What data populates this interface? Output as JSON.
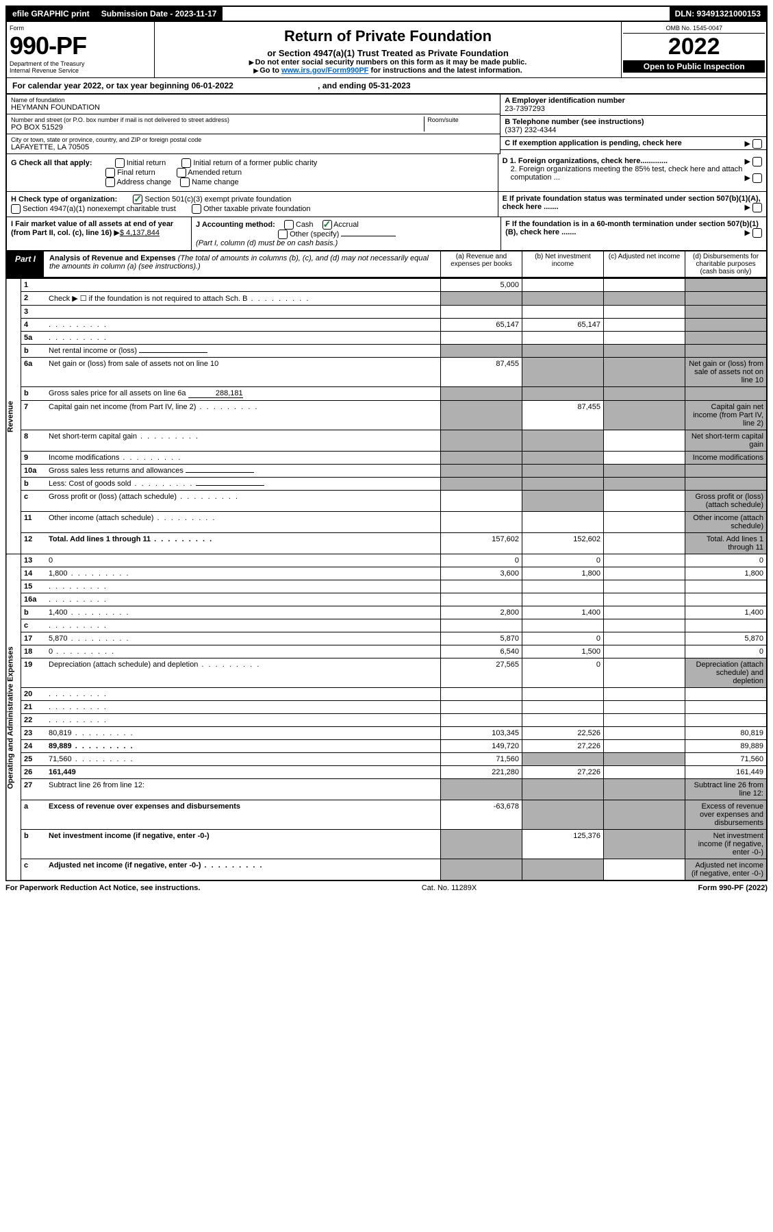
{
  "topbar": {
    "efile": "efile GRAPHIC print",
    "subdate_label": "Submission Date - 2023-11-17",
    "dln": "DLN: 93491321000153"
  },
  "header": {
    "form_word": "Form",
    "form_num": "990-PF",
    "dept": "Department of the Treasury",
    "irs": "Internal Revenue Service",
    "title": "Return of Private Foundation",
    "subtitle": "or Section 4947(a)(1) Trust Treated as Private Foundation",
    "note1": "Do not enter social security numbers on this form as it may be made public.",
    "note2_pre": "Go to ",
    "note2_link": "www.irs.gov/Form990PF",
    "note2_post": " for instructions and the latest information.",
    "omb": "OMB No. 1545-0047",
    "year": "2022",
    "open": "Open to Public Inspection"
  },
  "calendar": {
    "text_pre": "For calendar year 2022, or tax year beginning ",
    "begin": "06-01-2022",
    "mid": " , and ending ",
    "end": "05-31-2023"
  },
  "info": {
    "name_label": "Name of foundation",
    "name": "HEYMANN FOUNDATION",
    "addr_label": "Number and street (or P.O. box number if mail is not delivered to street address)",
    "addr": "PO BOX 51529",
    "room_label": "Room/suite",
    "city_label": "City or town, state or province, country, and ZIP or foreign postal code",
    "city": "LAFAYETTE, LA   70505",
    "ein_label": "A Employer identification number",
    "ein": "23-7397293",
    "phone_label": "B Telephone number (see instructions)",
    "phone": "(337) 232-4344",
    "c_label": "C If exemption application is pending, check here",
    "d1": "D 1. Foreign organizations, check here.............",
    "d2": "2. Foreign organizations meeting the 85% test, check here and attach computation ...",
    "e_label": "E  If private foundation status was terminated under section 507(b)(1)(A), check here .......",
    "f_label": "F  If the foundation is in a 60-month termination under section 507(b)(1)(B), check here .......",
    "g_label": "G Check all that apply:",
    "g_opts": [
      "Initial return",
      "Initial return of a former public charity",
      "Final return",
      "Amended return",
      "Address change",
      "Name change"
    ],
    "h_label": "H Check type of organization:",
    "h1": "Section 501(c)(3) exempt private foundation",
    "h2": "Section 4947(a)(1) nonexempt charitable trust",
    "h3": "Other taxable private foundation",
    "i_label": "I Fair market value of all assets at end of year (from Part II, col. (c), line 16)",
    "i_val": "$  4,137,844",
    "j_label": "J Accounting method:",
    "j_cash": "Cash",
    "j_accrual": "Accrual",
    "j_other": "Other (specify)",
    "j_note": "(Part I, column (d) must be on cash basis.)"
  },
  "part1": {
    "label": "Part I",
    "title": "Analysis of Revenue and Expenses",
    "title_note": " (The total of amounts in columns (b), (c), and (d) may not necessarily equal the amounts in column (a) (see instructions).)",
    "col_a": "(a)   Revenue and expenses per books",
    "col_b": "(b)   Net investment income",
    "col_c": "(c)   Adjusted net income",
    "col_d": "(d)   Disbursements for charitable purposes (cash basis only)"
  },
  "side": {
    "revenue": "Revenue",
    "opex": "Operating and Administrative Expenses"
  },
  "rows": [
    {
      "n": "1",
      "d": "",
      "a": "5,000",
      "b": "",
      "c": "",
      "dg": true
    },
    {
      "n": "2",
      "d": "Check ▶ ☐ if the foundation is not required to attach Sch. B",
      "dots": true,
      "nocols": true
    },
    {
      "n": "3",
      "d": "",
      "a": "",
      "b": "",
      "c": "",
      "dg": true
    },
    {
      "n": "4",
      "d": "",
      "dots": true,
      "a": "65,147",
      "b": "65,147",
      "c": "",
      "dg": true
    },
    {
      "n": "5a",
      "d": "",
      "dots": true,
      "a": "",
      "b": "",
      "c": "",
      "dg": true
    },
    {
      "n": "b",
      "d": "Net rental income or (loss)",
      "nocols": true,
      "line": true
    },
    {
      "n": "6a",
      "d": "Net gain or (loss) from sale of assets not on line 10",
      "a": "87,455",
      "bg": true,
      "cg": true,
      "dg": true
    },
    {
      "n": "b",
      "d": "Gross sales price for all assets on line 6a",
      "val": "288,181",
      "nocols": true
    },
    {
      "n": "7",
      "d": "Capital gain net income (from Part IV, line 2)",
      "dots": true,
      "ag": true,
      "b": "87,455",
      "cg": true,
      "dg": true
    },
    {
      "n": "8",
      "d": "Net short-term capital gain",
      "dots": true,
      "ag": true,
      "bg": true,
      "c": "",
      "dg": true
    },
    {
      "n": "9",
      "d": "Income modifications",
      "dots": true,
      "ag": true,
      "bg": true,
      "c": "",
      "dg": true
    },
    {
      "n": "10a",
      "d": "Gross sales less returns and allowances",
      "nocols": true,
      "line": true
    },
    {
      "n": "b",
      "d": "Less: Cost of goods sold",
      "dots": true,
      "nocols": true,
      "line": true
    },
    {
      "n": "c",
      "d": "Gross profit or (loss) (attach schedule)",
      "dots": true,
      "a": "",
      "bg": true,
      "c": "",
      "dg": true
    },
    {
      "n": "11",
      "d": "Other income (attach schedule)",
      "dots": true,
      "a": "",
      "b": "",
      "c": "",
      "dg": true
    },
    {
      "n": "12",
      "d": "Total. Add lines 1 through 11",
      "dots": true,
      "bold": true,
      "a": "157,602",
      "b": "152,602",
      "c": "",
      "dg": true
    }
  ],
  "exp_rows": [
    {
      "n": "13",
      "d": "0",
      "a": "0",
      "b": "0",
      "c": ""
    },
    {
      "n": "14",
      "d": "1,800",
      "dots": true,
      "a": "3,600",
      "b": "1,800",
      "c": ""
    },
    {
      "n": "15",
      "d": "",
      "dots": true,
      "a": "",
      "b": "",
      "c": ""
    },
    {
      "n": "16a",
      "d": "",
      "dots": true,
      "a": "",
      "b": "",
      "c": ""
    },
    {
      "n": "b",
      "d": "1,400",
      "dots": true,
      "a": "2,800",
      "b": "1,400",
      "c": ""
    },
    {
      "n": "c",
      "d": "",
      "dots": true,
      "a": "",
      "b": "",
      "c": ""
    },
    {
      "n": "17",
      "d": "5,870",
      "dots": true,
      "a": "5,870",
      "b": "0",
      "c": ""
    },
    {
      "n": "18",
      "d": "0",
      "dots": true,
      "a": "6,540",
      "b": "1,500",
      "c": ""
    },
    {
      "n": "19",
      "d": "Depreciation (attach schedule) and depletion",
      "dots": true,
      "a": "27,565",
      "b": "0",
      "c": "",
      "dg": true
    },
    {
      "n": "20",
      "d": "",
      "dots": true,
      "a": "",
      "b": "",
      "c": ""
    },
    {
      "n": "21",
      "d": "",
      "dots": true,
      "a": "",
      "b": "",
      "c": ""
    },
    {
      "n": "22",
      "d": "",
      "dots": true,
      "a": "",
      "b": "",
      "c": ""
    },
    {
      "n": "23",
      "d": "80,819",
      "dots": true,
      "a": "103,345",
      "b": "22,526",
      "c": ""
    },
    {
      "n": "24",
      "d": "89,889",
      "dots": true,
      "bold": true,
      "a": "149,720",
      "b": "27,226",
      "c": ""
    },
    {
      "n": "25",
      "d": "71,560",
      "dots": true,
      "a": "71,560",
      "bg": true,
      "cg": true
    },
    {
      "n": "26",
      "d": "161,449",
      "bold": true,
      "a": "221,280",
      "b": "27,226",
      "c": ""
    },
    {
      "n": "27",
      "d": "Subtract line 26 from line 12:",
      "ag": true,
      "bg": true,
      "cg": true,
      "dg": true
    },
    {
      "n": "a",
      "d": "Excess of revenue over expenses and disbursements",
      "bold": true,
      "a": "-63,678",
      "bg": true,
      "cg": true,
      "dg": true
    },
    {
      "n": "b",
      "d": "Net investment income (if negative, enter -0-)",
      "bold": true,
      "ag": true,
      "b": "125,376",
      "cg": true,
      "dg": true
    },
    {
      "n": "c",
      "d": "Adjusted net income (if negative, enter -0-)",
      "dots": true,
      "bold": true,
      "ag": true,
      "bg": true,
      "c": "",
      "dg": true
    }
  ],
  "footer": {
    "left": "For Paperwork Reduction Act Notice, see instructions.",
    "mid": "Cat. No. 11289X",
    "right": "Form 990-PF (2022)"
  }
}
